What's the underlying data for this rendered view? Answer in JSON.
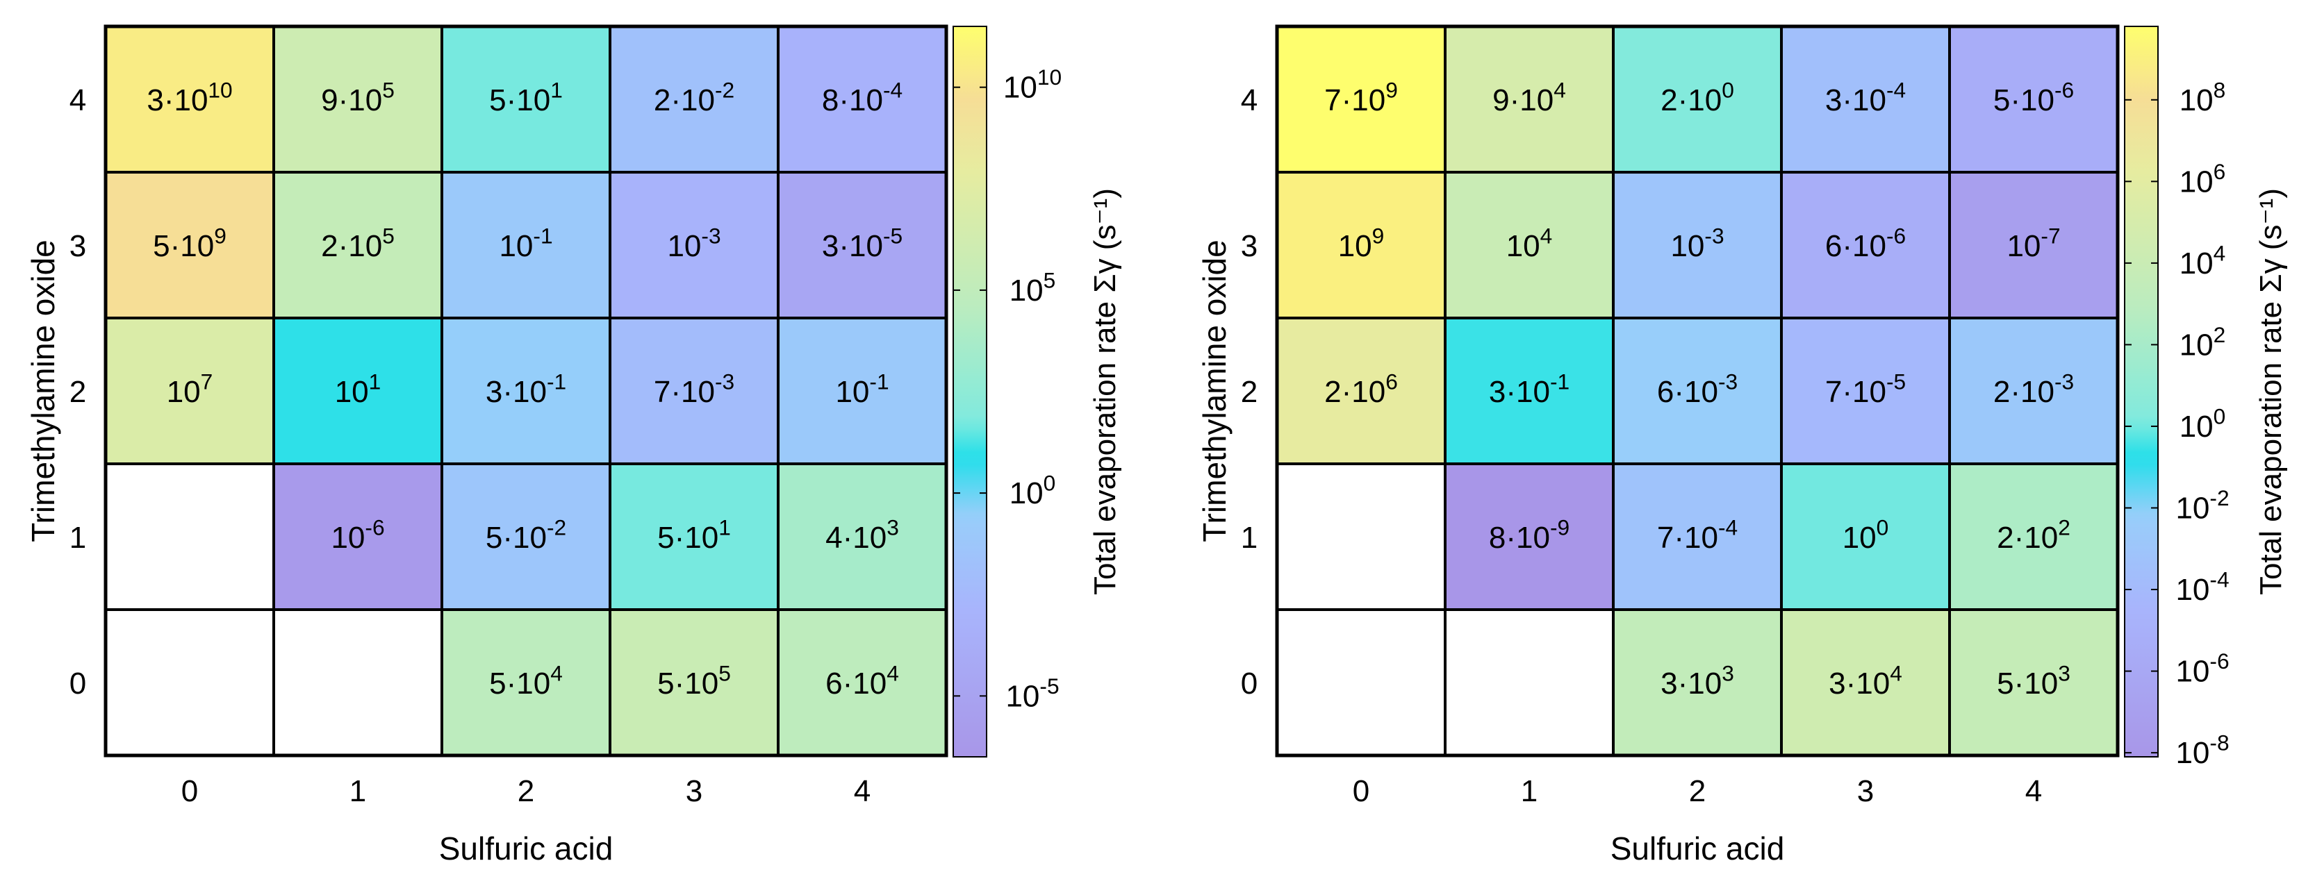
{
  "chart_data": [
    {
      "type": "heatmap",
      "xlabel": "Sulfuric acid",
      "ylabel": "Trimethylamine oxide",
      "x_categories": [
        "0",
        "1",
        "2",
        "3",
        "4"
      ],
      "y_categories": [
        "0",
        "1",
        "2",
        "3",
        "4"
      ],
      "colorbar_label": "Total evaporation rate Σγ (s⁻¹)",
      "colorbar_scale": "log",
      "colorbar_range_exp": [
        -6.5,
        11.5
      ],
      "colorbar_ticks_exp": [
        -5,
        0,
        5,
        10
      ],
      "rows": [
        {
          "y": "4",
          "cells": [
            {
              "m": "3",
              "e": "10",
              "v": 30000000000.0
            },
            {
              "m": "9",
              "e": "5",
              "v": 900000.0
            },
            {
              "m": "5",
              "e": "1",
              "v": 50
            },
            {
              "m": "2",
              "e": "-2",
              "v": 0.02
            },
            {
              "m": "8",
              "e": "-4",
              "v": 0.0008
            }
          ]
        },
        {
          "y": "3",
          "cells": [
            {
              "m": "5",
              "e": "9",
              "v": 5000000000.0
            },
            {
              "m": "2",
              "e": "5",
              "v": 200000.0
            },
            {
              "m": "",
              "e": "-1",
              "v": 0.1
            },
            {
              "m": "",
              "e": "-3",
              "v": 0.001
            },
            {
              "m": "3",
              "e": "-5",
              "v": 3e-05
            }
          ]
        },
        {
          "y": "2",
          "cells": [
            {
              "m": "",
              "e": "7",
              "v": 10000000.0
            },
            {
              "m": "",
              "e": "1",
              "v": 10
            },
            {
              "m": "3",
              "e": "-1",
              "v": 0.3
            },
            {
              "m": "7",
              "e": "-3",
              "v": 0.007
            },
            {
              "m": "",
              "e": "-1",
              "v": 0.1
            }
          ]
        },
        {
          "y": "1",
          "cells": [
            null,
            {
              "m": "",
              "e": "-6",
              "v": 1e-06
            },
            {
              "m": "5",
              "e": "-2",
              "v": 0.05
            },
            {
              "m": "5",
              "e": "1",
              "v": 50
            },
            {
              "m": "4",
              "e": "3",
              "v": 4000
            }
          ]
        },
        {
          "y": "0",
          "cells": [
            null,
            null,
            {
              "m": "5",
              "e": "4",
              "v": 50000.0
            },
            {
              "m": "5",
              "e": "5",
              "v": 500000.0
            },
            {
              "m": "6",
              "e": "4",
              "v": 60000.0
            }
          ]
        }
      ]
    },
    {
      "type": "heatmap",
      "xlabel": "Sulfuric acid",
      "ylabel": "Trimethylamine oxide",
      "x_categories": [
        "0",
        "1",
        "2",
        "3",
        "4"
      ],
      "y_categories": [
        "0",
        "1",
        "2",
        "3",
        "4"
      ],
      "colorbar_label": "Total evaporation rate Σγ (s⁻¹)",
      "colorbar_scale": "log",
      "colorbar_range_exp": [
        -8.1,
        9.8
      ],
      "colorbar_ticks_exp": [
        -8,
        -6,
        -4,
        -2,
        0,
        2,
        4,
        6,
        8
      ],
      "rows": [
        {
          "y": "4",
          "cells": [
            {
              "m": "7",
              "e": "9",
              "v": 7000000000.0
            },
            {
              "m": "9",
              "e": "4",
              "v": 90000.0
            },
            {
              "m": "2",
              "e": "0",
              "v": 2
            },
            {
              "m": "3",
              "e": "-4",
              "v": 0.0003
            },
            {
              "m": "5",
              "e": "-6",
              "v": 5e-06
            }
          ]
        },
        {
          "y": "3",
          "cells": [
            {
              "m": "",
              "e": "9",
              "v": 1000000000.0
            },
            {
              "m": "",
              "e": "4",
              "v": 10000.0
            },
            {
              "m": "",
              "e": "-3",
              "v": 0.001
            },
            {
              "m": "6",
              "e": "-6",
              "v": 6e-06
            },
            {
              "m": "",
              "e": "-7",
              "v": 1e-07
            }
          ]
        },
        {
          "y": "2",
          "cells": [
            {
              "m": "2",
              "e": "6",
              "v": 2000000.0
            },
            {
              "m": "3",
              "e": "-1",
              "v": 0.3
            },
            {
              "m": "6",
              "e": "-3",
              "v": 0.006
            },
            {
              "m": "7",
              "e": "-5",
              "v": 7e-05
            },
            {
              "m": "2",
              "e": "-3",
              "v": 0.002
            }
          ]
        },
        {
          "y": "1",
          "cells": [
            null,
            {
              "m": "8",
              "e": "-9",
              "v": 8e-09
            },
            {
              "m": "7",
              "e": "-4",
              "v": 0.0007
            },
            {
              "m": "",
              "e": "0",
              "v": 1
            },
            {
              "m": "2",
              "e": "2",
              "v": 200
            }
          ]
        },
        {
          "y": "0",
          "cells": [
            null,
            null,
            {
              "m": "3",
              "e": "3",
              "v": 3000
            },
            {
              "m": "3",
              "e": "4",
              "v": 30000.0
            },
            {
              "m": "5",
              "e": "3",
              "v": 5000
            }
          ]
        }
      ]
    }
  ]
}
